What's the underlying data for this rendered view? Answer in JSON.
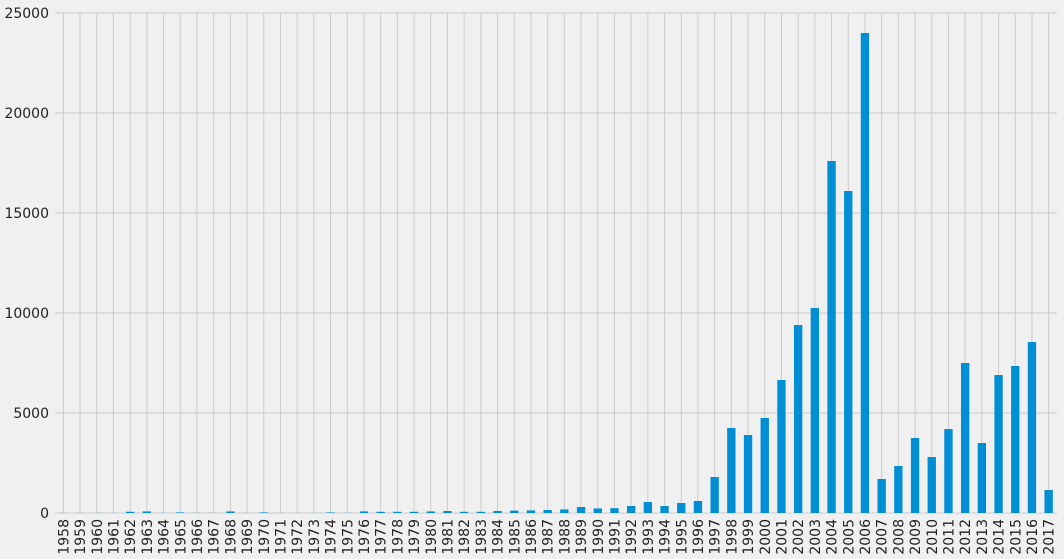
{
  "chart_data": {
    "type": "bar",
    "title": "",
    "xlabel": "",
    "ylabel": "",
    "ylim": [
      0,
      25000
    ],
    "yticks": [
      0,
      5000,
      10000,
      15000,
      20000,
      25000
    ],
    "grid": true,
    "legend": "none",
    "bar_color": "#008fd5",
    "background": "#f0f0f0",
    "grid_color": "#cbcbcb",
    "categories": [
      "1958",
      "1959",
      "1960",
      "1961",
      "1962",
      "1963",
      "1964",
      "1965",
      "1966",
      "1967",
      "1968",
      "1969",
      "1970",
      "1971",
      "1972",
      "1973",
      "1974",
      "1975",
      "1976",
      "1977",
      "1978",
      "1979",
      "1980",
      "1981",
      "1982",
      "1983",
      "1984",
      "1985",
      "1986",
      "1987",
      "1988",
      "1989",
      "1990",
      "1991",
      "1992",
      "1993",
      "1994",
      "1995",
      "1996",
      "1997",
      "1998",
      "1999",
      "2000",
      "2001",
      "2002",
      "2003",
      "2004",
      "2005",
      "2006",
      "2007",
      "2008",
      "2009",
      "2010",
      "2011",
      "2012",
      "2013",
      "2014",
      "2015",
      "2016",
      "2017"
    ],
    "values": [
      5,
      5,
      5,
      5,
      60,
      80,
      5,
      30,
      5,
      5,
      80,
      5,
      30,
      5,
      5,
      5,
      30,
      5,
      80,
      60,
      60,
      60,
      80,
      100,
      60,
      60,
      100,
      120,
      130,
      150,
      180,
      300,
      230,
      240,
      350,
      550,
      350,
      500,
      600,
      1800,
      4250,
      3900,
      4750,
      6650,
      9400,
      10250,
      17600,
      16100,
      24000,
      1700,
      2350,
      3750,
      2800,
      4200,
      7500,
      3500,
      6900,
      7350,
      8550,
      1150
    ]
  }
}
